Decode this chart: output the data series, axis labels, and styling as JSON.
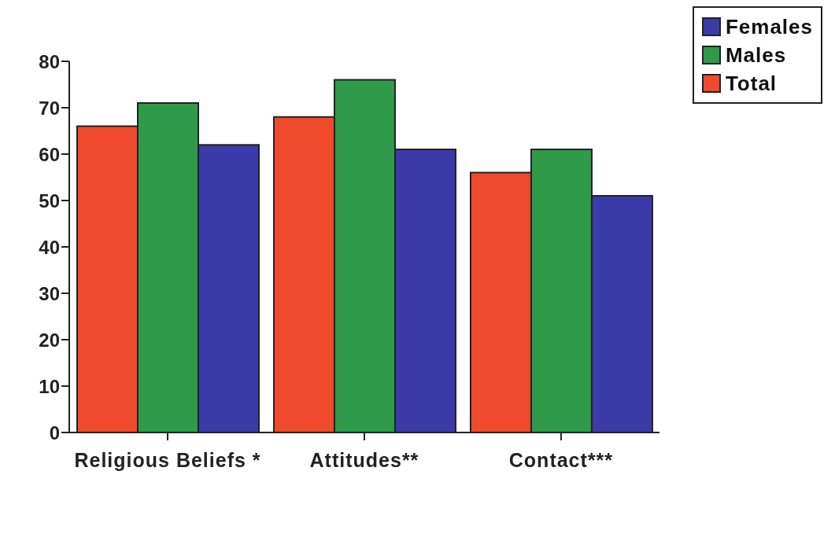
{
  "chart_data": {
    "type": "bar",
    "categories": [
      "Religious Beliefs *",
      "Attitudes**",
      "Contact***"
    ],
    "series": [
      {
        "name": "Total",
        "color": "#f04a2c",
        "values": [
          66,
          68,
          56
        ]
      },
      {
        "name": "Males",
        "color": "#2e9a4a",
        "values": [
          71,
          76,
          61
        ]
      },
      {
        "name": "Females",
        "color": "#3a3aa8",
        "values": [
          62,
          61,
          51
        ]
      }
    ],
    "ylim": [
      0,
      80
    ],
    "yticks": [
      0,
      10,
      20,
      30,
      40,
      50,
      60,
      70,
      80
    ],
    "grid": false,
    "legend": "top right"
  }
}
